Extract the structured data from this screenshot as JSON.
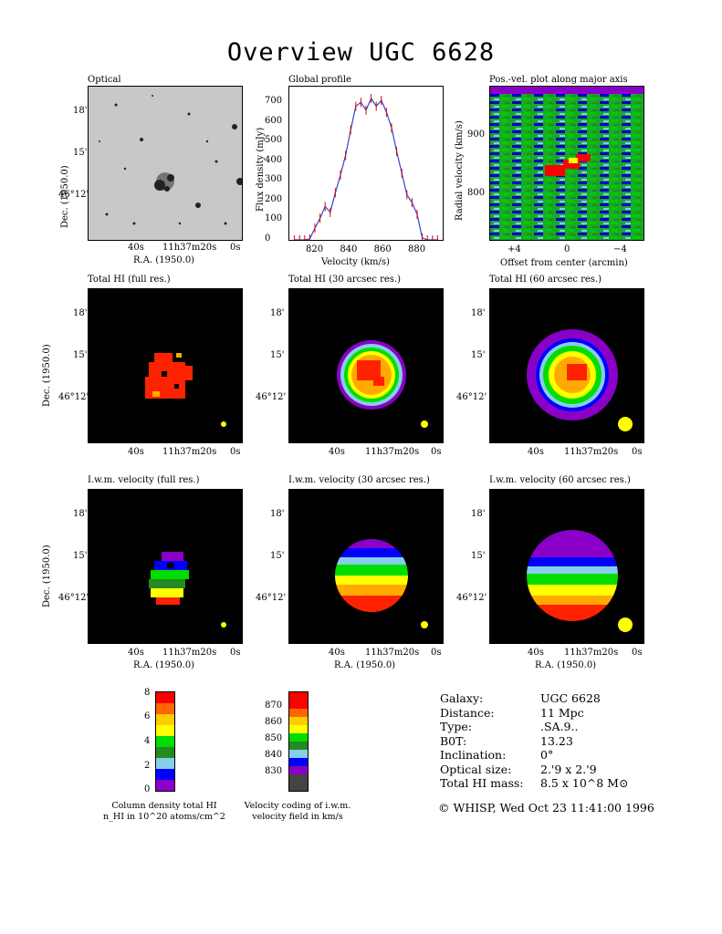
{
  "title": "Overview UGC 6628",
  "panels": {
    "optical": "Optical",
    "global_profile": "Global profile",
    "pv": "Pos.-vel. plot along major axis",
    "hi_full": "Total HI (full res.)",
    "hi_30": "Total HI (30 arcsec res.)",
    "hi_60": "Total HI (60 arcsec res.)",
    "vel_full": "I.w.m. velocity (full res.)",
    "vel_30": "I.w.m. velocity (30 arcsec res.)",
    "vel_60": "I.w.m. velocity (60 arcsec res.)"
  },
  "axes": {
    "ra_label": "R.A. (1950.0)",
    "dec_label": "Dec. (1950.0)",
    "ra_ticks": [
      "40s",
      "11h37m20s",
      "0s"
    ],
    "dec_ticks": [
      "18'",
      "15'",
      "46°12'"
    ],
    "velocity_label": "Velocity (km/s)",
    "flux_label": "Flux density (mJy)",
    "radial_label": "Radial velocity (km/s)",
    "offset_label": "Offset from center (arcmin)",
    "offset_ticks": [
      "+4",
      "0",
      "−4"
    ],
    "pv_yticks": [
      "900",
      "800"
    ]
  },
  "chart_data": {
    "type": "line",
    "title": "Global profile",
    "xlabel": "Velocity (km/s)",
    "ylabel": "Flux density (mJy)",
    "xlim": [
      805,
      895
    ],
    "ylim": [
      0,
      780
    ],
    "xticks": [
      820,
      840,
      860,
      880
    ],
    "yticks": [
      0,
      100,
      200,
      300,
      400,
      500,
      600,
      700
    ],
    "x": [
      808,
      811,
      814,
      817,
      820,
      823,
      826,
      829,
      832,
      835,
      838,
      841,
      844,
      847,
      850,
      853,
      856,
      859,
      862,
      865,
      868,
      871,
      874,
      877,
      880,
      883,
      886,
      889,
      892
    ],
    "y": [
      0,
      0,
      0,
      5,
      60,
      110,
      170,
      140,
      240,
      330,
      430,
      560,
      680,
      700,
      660,
      720,
      680,
      710,
      650,
      570,
      450,
      340,
      230,
      190,
      130,
      10,
      0,
      0,
      0
    ]
  },
  "legend_density": {
    "ticks": [
      "8",
      "6",
      "4",
      "2",
      "0"
    ],
    "colors": [
      "#ff0000",
      "#ff6600",
      "#ffcc00",
      "#ffff00",
      "#00dd00",
      "#228b22",
      "#87ceeb",
      "#0000ff",
      "#8b00c8"
    ],
    "caption1": "Column density total HI",
    "caption2": "n_HI in 10^20 atoms/cm^2"
  },
  "legend_velocity": {
    "ticks": [
      "870",
      "860",
      "850",
      "840",
      "830"
    ],
    "colors": [
      "#ff0000",
      "#ff0000",
      "#ff6600",
      "#ffcc00",
      "#ffff00",
      "#00dd00",
      "#228b22",
      "#87ceeb",
      "#0000ff",
      "#8b00c8",
      "#444444",
      "#444444"
    ],
    "caption1": "Velocity coding of i.w.m.",
    "caption2": "velocity field in km/s"
  },
  "info": {
    "rows": [
      {
        "k": "Galaxy:",
        "v": "UGC 6628"
      },
      {
        "k": "Distance:",
        "v": "11 Mpc"
      },
      {
        "k": "Type:",
        "v": ".SA.9.."
      },
      {
        "k": "B0T:",
        "v": "13.23"
      },
      {
        "k": "Inclination:",
        "v": "0°"
      },
      {
        "k": "Optical size:",
        "v": "2.'9 x 2.'9"
      },
      {
        "k": "Total HI mass:",
        "v": "8.5 x 10^8 M⊙"
      }
    ],
    "footer": "© WHISP, Wed Oct 23 11:41:00 1996"
  }
}
